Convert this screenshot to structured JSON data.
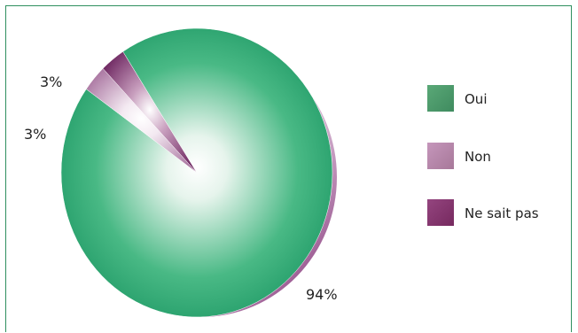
{
  "chart_data": {
    "type": "pie",
    "slices": [
      {
        "label": "Oui",
        "value": 94,
        "value_label": "94%",
        "color": "#1a9a64"
      },
      {
        "label": "Non",
        "value": 3,
        "value_label": "3%",
        "color": "#b17aa8"
      },
      {
        "label": "Ne sait pas",
        "value": 3,
        "value_label": "3%",
        "color": "#7b2f6b"
      }
    ],
    "legend_position": "right",
    "shadow_color": "#8a2f7b"
  }
}
